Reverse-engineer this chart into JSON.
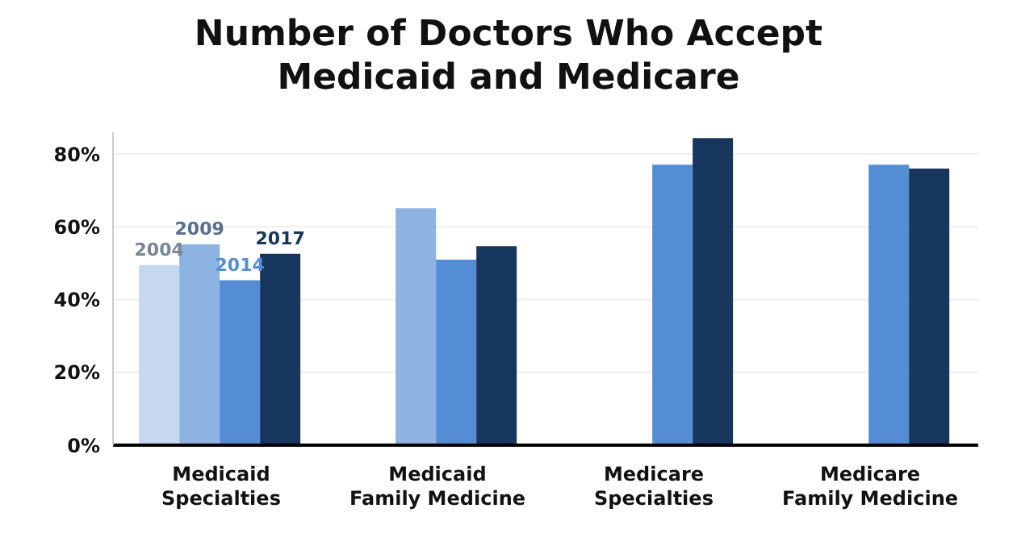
{
  "chart_data": {
    "type": "bar",
    "title": "Number of Doctors Who Accept\nMedicaid and Medicare",
    "categories": [
      "Medicaid Specialties",
      "Medicaid Family Medicine",
      "Medicare Specialties",
      "Medicare Family Medicine"
    ],
    "series": [
      {
        "name": "2004",
        "color": "#c5d8ef",
        "values": [
          49.5,
          null,
          null,
          null
        ]
      },
      {
        "name": "2009",
        "color": "#8db3e2",
        "values": [
          55.2,
          65.1,
          null,
          null
        ]
      },
      {
        "name": "2014",
        "color": "#548dd4",
        "values": [
          45.3,
          51,
          77.1,
          77.1
        ]
      },
      {
        "name": "2017",
        "color": "#17365d",
        "values": [
          52.6,
          54.7,
          84.4,
          76
        ]
      }
    ],
    "ylim": [
      0,
      86
    ],
    "yticks": [
      {
        "value": 0,
        "label": "0%"
      },
      {
        "value": 20,
        "label": "20%"
      },
      {
        "value": 40,
        "label": "40%"
      },
      {
        "value": 60,
        "label": "60%"
      },
      {
        "value": 80,
        "label": "80%"
      }
    ],
    "grid": "y"
  }
}
